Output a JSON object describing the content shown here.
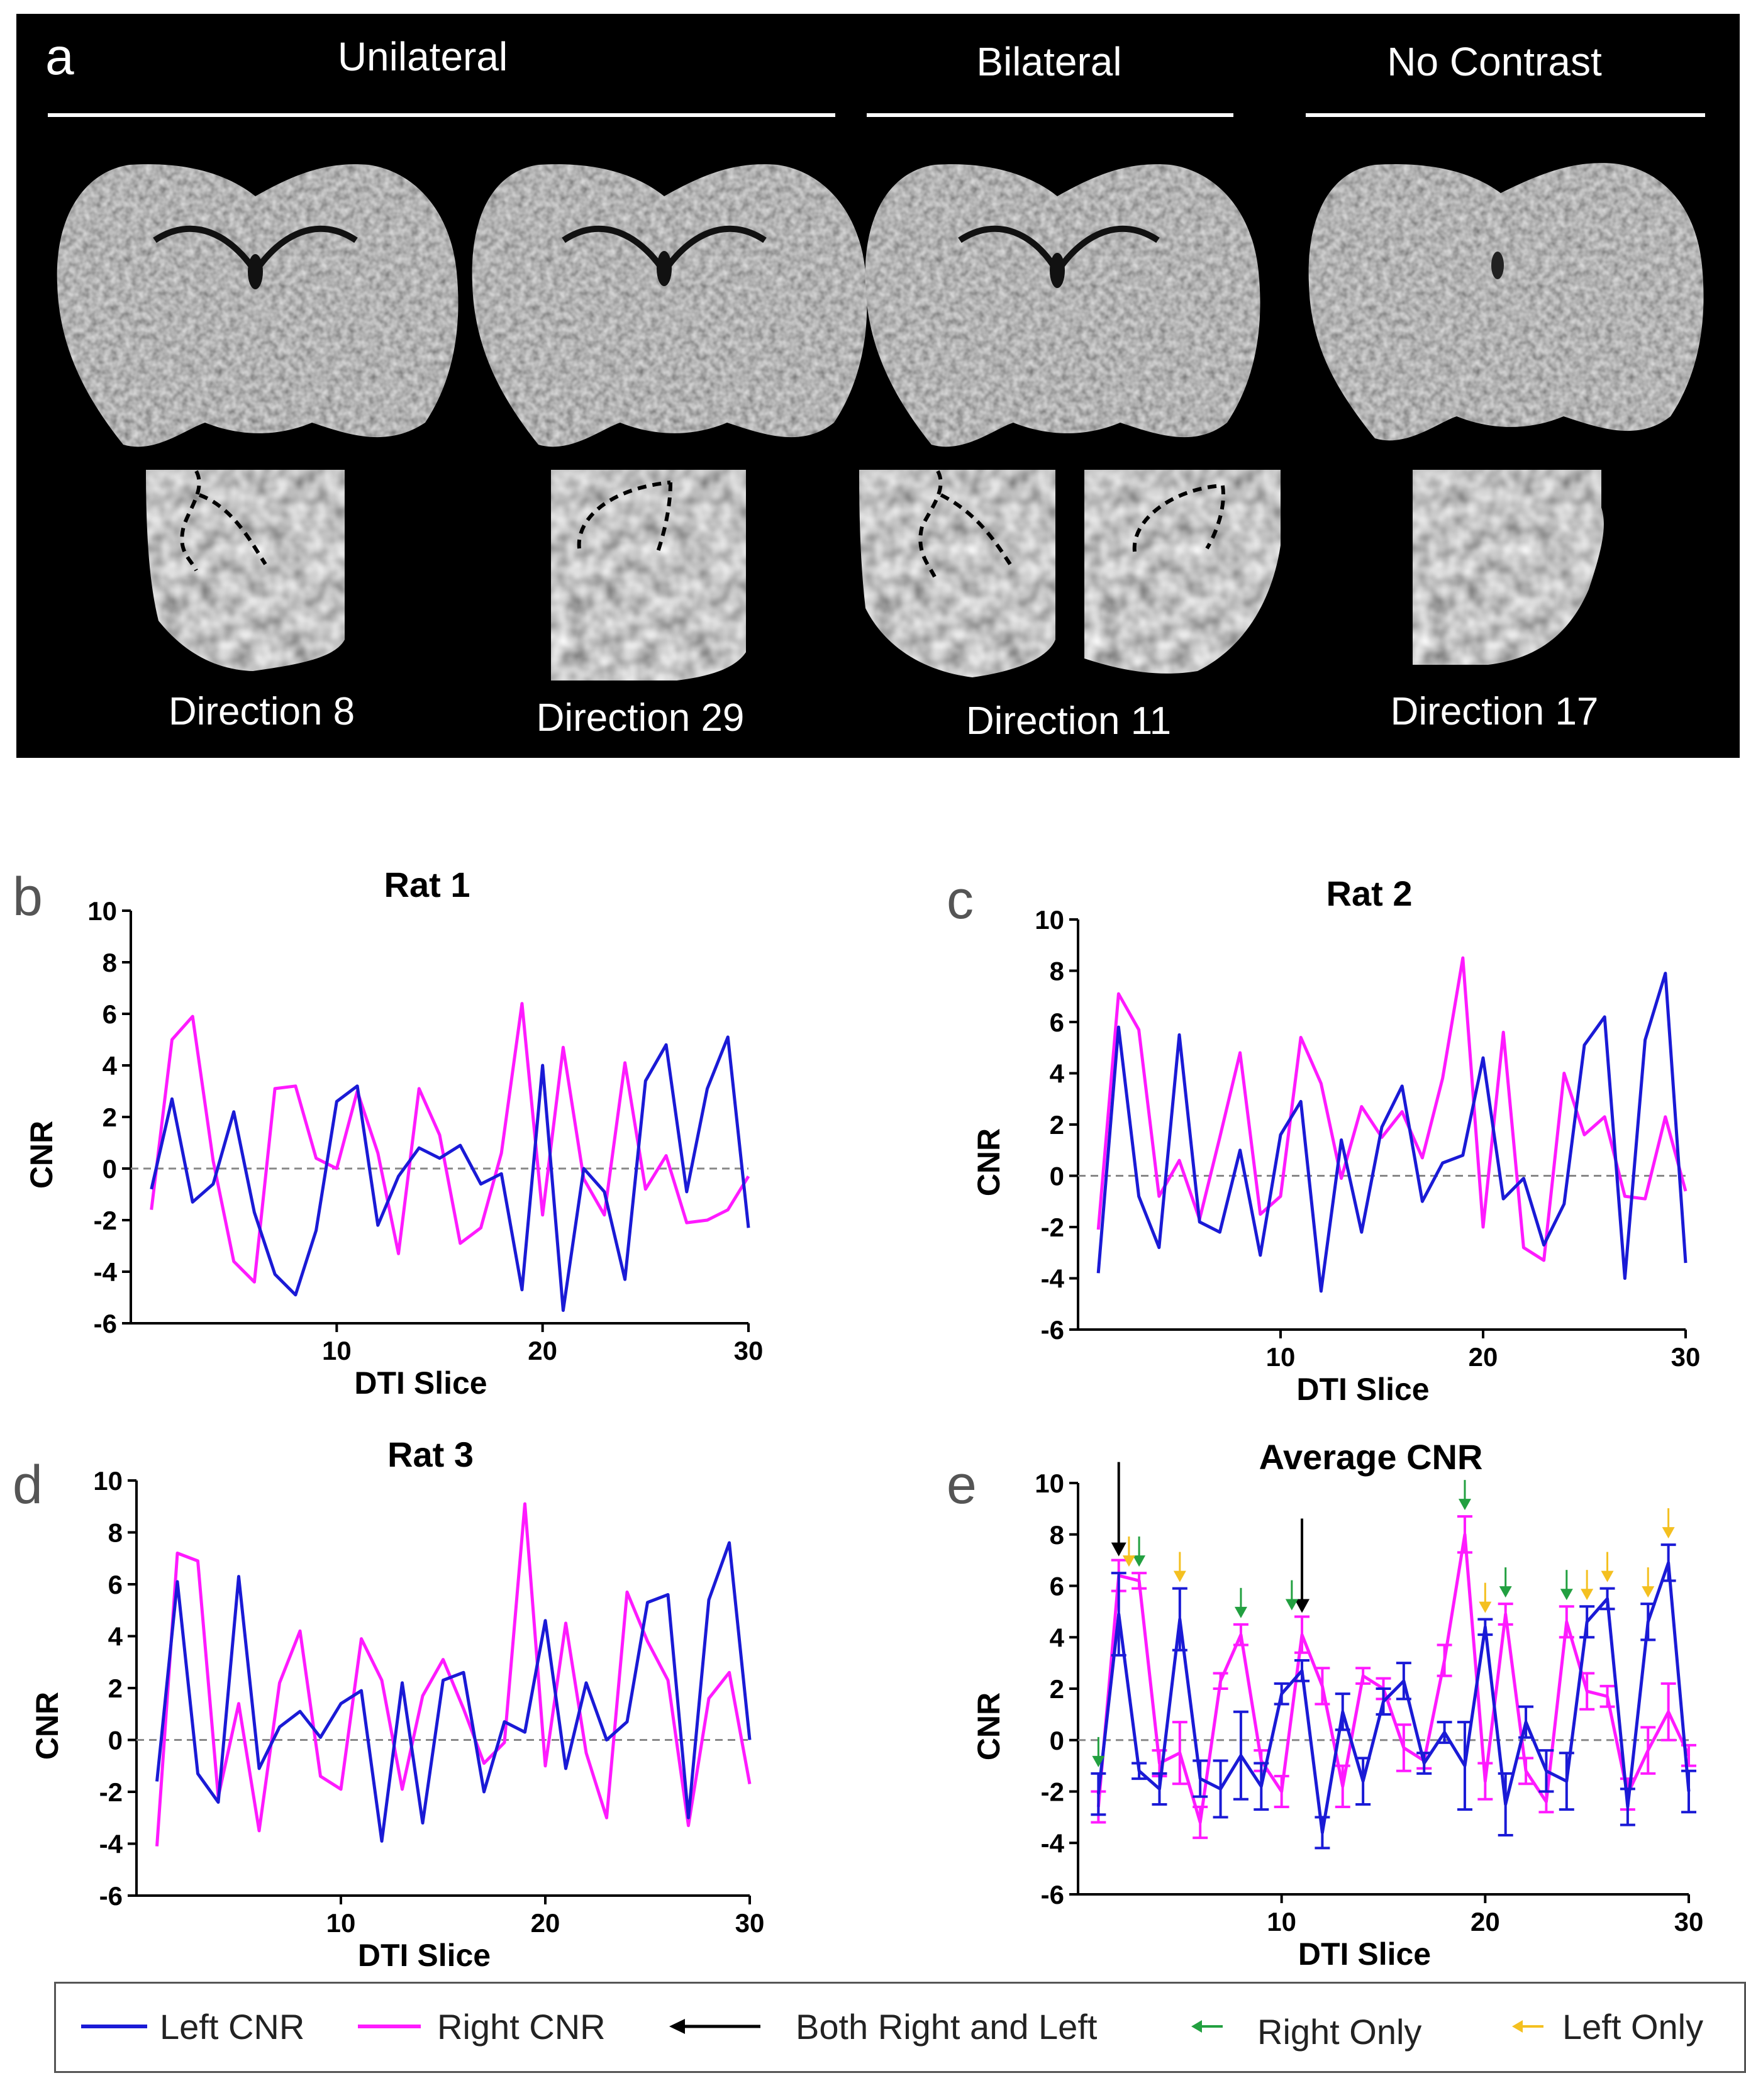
{
  "panel_a": {
    "letter": "a",
    "groups": [
      "Unilateral",
      "Bilateral",
      "No Contrast"
    ],
    "directions": [
      "Direction 8",
      "Direction 29",
      "Direction 11",
      "Direction 17"
    ]
  },
  "colors": {
    "left": "#1a1ad6",
    "right": "#ff1aff",
    "both": "#000000",
    "right_only": "#22a040",
    "left_only": "#f4c020"
  },
  "legend": {
    "left": "Left CNR",
    "right": "Right CNR",
    "both": "Both Right and Left",
    "right_only": "Right Only",
    "left_only": "Left Only"
  },
  "chart_data": [
    {
      "type": "line",
      "letter": "b",
      "title": "Rat 1",
      "xlabel": "DTI Slice",
      "ylabel": "CNR",
      "xlim": [
        0,
        30
      ],
      "ylim": [
        -6,
        10
      ],
      "xticks": [
        10,
        20,
        30
      ],
      "yticks": [
        -6,
        -4,
        -2,
        0,
        2,
        4,
        6,
        8,
        10
      ],
      "x": [
        1,
        2,
        3,
        4,
        5,
        6,
        7,
        8,
        9,
        10,
        11,
        12,
        13,
        14,
        15,
        16,
        17,
        18,
        19,
        20,
        21,
        22,
        23,
        24,
        25,
        26,
        27,
        28,
        29,
        30
      ],
      "series": [
        {
          "name": "Left CNR",
          "values": [
            -0.8,
            2.7,
            -1.3,
            -0.6,
            2.2,
            -1.7,
            -4.1,
            -4.9,
            -2.4,
            2.6,
            3.2,
            -2.2,
            -0.3,
            0.8,
            0.4,
            0.9,
            -0.6,
            -0.2,
            -4.7,
            4.0,
            -5.5,
            0.0,
            -0.9,
            -4.3,
            3.4,
            4.8,
            -0.9,
            3.1,
            5.1,
            -2.3
          ]
        },
        {
          "name": "Right CNR",
          "values": [
            -1.6,
            5.0,
            5.9,
            0.3,
            -3.6,
            -4.4,
            3.1,
            3.2,
            0.4,
            0.0,
            3.0,
            0.6,
            -3.3,
            3.1,
            1.3,
            -2.9,
            -2.3,
            0.6,
            6.4,
            -1.8,
            4.7,
            -0.4,
            -1.8,
            4.1,
            -0.8,
            0.5,
            -2.1,
            -2.0,
            -1.6,
            -0.3
          ]
        }
      ]
    },
    {
      "type": "line",
      "letter": "c",
      "title": "Rat 2",
      "xlabel": "DTI Slice",
      "ylabel": "CNR",
      "xlim": [
        0,
        30
      ],
      "ylim": [
        -6,
        10
      ],
      "xticks": [
        10,
        20,
        30
      ],
      "yticks": [
        -6,
        -4,
        -2,
        0,
        2,
        4,
        6,
        8,
        10
      ],
      "x": [
        1,
        2,
        3,
        4,
        5,
        6,
        7,
        8,
        9,
        10,
        11,
        12,
        13,
        14,
        15,
        16,
        17,
        18,
        19,
        20,
        21,
        22,
        23,
        24,
        25,
        26,
        27,
        28,
        29,
        30
      ],
      "series": [
        {
          "name": "Left CNR",
          "values": [
            -3.8,
            5.8,
            -0.8,
            -2.8,
            5.5,
            -1.8,
            -2.2,
            1.0,
            -3.1,
            1.6,
            2.9,
            -4.5,
            1.4,
            -2.2,
            1.9,
            3.5,
            -1.0,
            0.5,
            0.8,
            4.6,
            -0.9,
            -0.1,
            -2.7,
            -1.1,
            5.1,
            6.2,
            -4.0,
            5.3,
            7.9,
            -3.4
          ]
        },
        {
          "name": "Right CNR",
          "values": [
            -2.1,
            7.1,
            5.7,
            -0.8,
            0.6,
            -1.7,
            1.5,
            4.8,
            -1.5,
            -0.8,
            5.4,
            3.6,
            -0.1,
            2.7,
            1.5,
            2.5,
            0.7,
            3.8,
            8.5,
            -2.0,
            5.6,
            -2.8,
            -3.3,
            4.0,
            1.6,
            2.3,
            -0.8,
            -0.9,
            2.3,
            -0.6
          ]
        }
      ]
    },
    {
      "type": "line",
      "letter": "d",
      "title": "Rat 3",
      "xlabel": "DTI Slice",
      "ylabel": "CNR",
      "xlim": [
        0,
        30
      ],
      "ylim": [
        -6,
        10
      ],
      "xticks": [
        10,
        20,
        30
      ],
      "yticks": [
        -6,
        -4,
        -2,
        0,
        2,
        4,
        6,
        8,
        10
      ],
      "x": [
        1,
        2,
        3,
        4,
        5,
        6,
        7,
        8,
        9,
        10,
        11,
        12,
        13,
        14,
        15,
        16,
        17,
        18,
        19,
        20,
        21,
        22,
        23,
        24,
        25,
        26,
        27,
        28,
        29,
        30
      ],
      "series": [
        {
          "name": "Left CNR",
          "values": [
            -1.6,
            6.1,
            -1.3,
            -2.4,
            6.3,
            -1.1,
            0.5,
            1.1,
            0.1,
            1.4,
            1.9,
            -3.9,
            2.2,
            -3.2,
            2.3,
            2.6,
            -2.0,
            0.7,
            0.3,
            4.6,
            -1.1,
            2.2,
            0.0,
            0.7,
            5.3,
            5.6,
            -3.0,
            5.4,
            7.6,
            0.0
          ]
        },
        {
          "name": "Right CNR",
          "values": [
            -4.1,
            7.2,
            6.9,
            -2.2,
            1.4,
            -3.5,
            2.2,
            4.2,
            -1.4,
            -1.9,
            3.9,
            2.3,
            -1.9,
            1.7,
            3.1,
            1.2,
            -0.9,
            -0.1,
            9.1,
            -1.0,
            4.5,
            -0.5,
            -3.0,
            5.7,
            3.8,
            2.3,
            -3.3,
            1.6,
            2.6,
            -1.7
          ]
        }
      ]
    },
    {
      "type": "line",
      "letter": "e",
      "title": "Average CNR",
      "xlabel": "DTI Slice",
      "ylabel": "CNR",
      "xlim": [
        0,
        30
      ],
      "ylim": [
        -6,
        10
      ],
      "xticks": [
        10,
        20,
        30
      ],
      "yticks": [
        -6,
        -4,
        -2,
        0,
        2,
        4,
        6,
        8,
        10
      ],
      "x": [
        1,
        2,
        3,
        4,
        5,
        6,
        7,
        8,
        9,
        10,
        11,
        12,
        13,
        14,
        15,
        16,
        17,
        18,
        19,
        20,
        21,
        22,
        23,
        24,
        25,
        26,
        27,
        28,
        29,
        30
      ],
      "series": [
        {
          "name": "Left CNR",
          "values": [
            -2.1,
            4.9,
            -1.2,
            -1.9,
            4.7,
            -1.5,
            -1.9,
            -0.6,
            -1.8,
            1.8,
            2.7,
            -3.6,
            1.1,
            -1.6,
            1.5,
            2.3,
            -0.9,
            0.3,
            -1.0,
            4.4,
            -2.5,
            0.7,
            -1.2,
            -1.6,
            4.6,
            5.5,
            -2.6,
            4.6,
            6.9,
            -2.0
          ],
          "errors": [
            0.8,
            1.6,
            0.3,
            0.6,
            1.2,
            0.7,
            1.1,
            1.7,
            0.9,
            0.4,
            0.4,
            0.6,
            0.7,
            0.9,
            0.5,
            0.7,
            0.4,
            0.4,
            1.7,
            0.3,
            1.2,
            0.6,
            0.8,
            1.1,
            0.6,
            0.4,
            0.7,
            0.7,
            0.7,
            0.8
          ]
        },
        {
          "name": "Right CNR",
          "values": [
            -2.6,
            6.4,
            6.2,
            -0.9,
            -0.5,
            -3.2,
            2.3,
            4.1,
            -0.8,
            -2.0,
            4.1,
            2.1,
            -1.8,
            2.5,
            2.0,
            -0.3,
            -0.8,
            3.1,
            8.0,
            -1.6,
            4.9,
            -1.2,
            -2.4,
            4.6,
            1.9,
            1.7,
            -2.1,
            -0.4,
            1.1,
            -0.6
          ],
          "errors": [
            0.6,
            0.6,
            0.3,
            0.5,
            1.2,
            0.6,
            0.3,
            0.4,
            0.4,
            0.6,
            0.7,
            0.7,
            0.8,
            0.3,
            0.4,
            0.9,
            0.3,
            0.6,
            0.7,
            0.7,
            0.4,
            0.5,
            0.4,
            0.6,
            0.7,
            0.4,
            0.6,
            0.9,
            1.1,
            0.4
          ]
        }
      ],
      "annotations": {
        "both": [
          2,
          11
        ],
        "right_only": [
          1,
          3,
          8,
          10.5,
          19,
          21,
          24
        ],
        "left_only": [
          2.5,
          5,
          20,
          25,
          26,
          28,
          29
        ]
      }
    }
  ]
}
